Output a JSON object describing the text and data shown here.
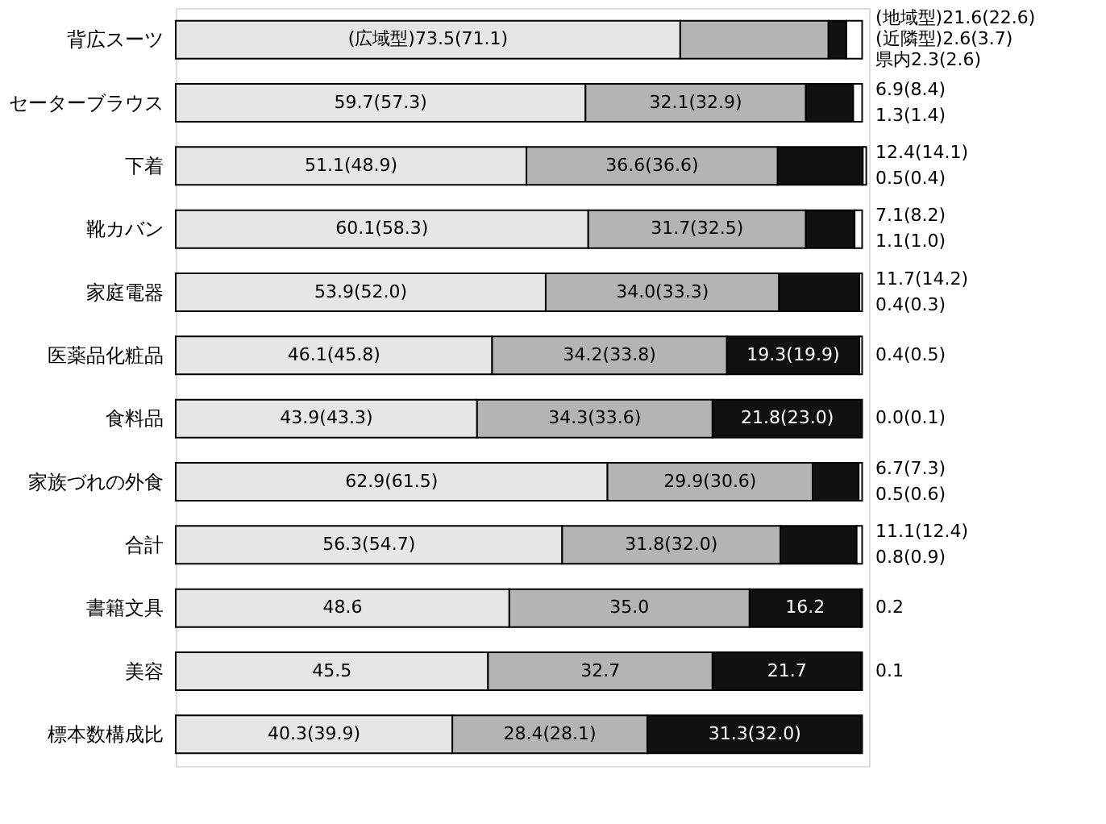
{
  "chart_data": {
    "type": "bar",
    "orientation": "horizontal",
    "stacked": true,
    "xlim": [
      0,
      101
    ],
    "tick_labels": "y",
    "grid": false,
    "categories": [
      "背広スーツ",
      "セーターブラウス",
      "下着",
      "靴カバン",
      "家庭電器",
      "医薬品化粧品",
      "食料品",
      "家族づれの外食",
      "合計",
      "書籍文具",
      "美容",
      "標本数構成比"
    ],
    "series": [
      {
        "color": "#e6e6e6",
        "values": [
          73.5,
          59.7,
          51.1,
          60.1,
          53.9,
          46.1,
          43.9,
          62.9,
          56.3,
          48.6,
          45.5,
          40.3
        ],
        "value_labels": [
          "(広域型)73.5(71.1)",
          "59.7(57.3)",
          "51.1(48.9)",
          "60.1(58.3)",
          "53.9(52.0)",
          "46.1(45.8)",
          "43.9(43.3)",
          "62.9(61.5)",
          "56.3(54.7)",
          "48.6",
          "45.5",
          "40.3(39.9)"
        ]
      },
      {
        "color": "#b4b4b4",
        "values": [
          21.6,
          32.1,
          36.6,
          31.7,
          34.0,
          34.2,
          34.3,
          29.9,
          31.8,
          35.0,
          32.7,
          28.4
        ],
        "value_labels": [
          "(地域型)21.6(22.6)",
          "32.1(32.9)",
          "36.6(36.6)",
          "31.7(32.5)",
          "34.0(33.3)",
          "34.2(33.8)",
          "34.3(33.6)",
          "29.9(30.6)",
          "31.8(32.0)",
          "35.0",
          "32.7",
          "28.4(28.1)"
        ]
      },
      {
        "color": "#111111",
        "values": [
          2.6,
          6.9,
          12.4,
          7.1,
          11.7,
          19.3,
          21.8,
          6.7,
          11.1,
          16.2,
          21.7,
          31.3
        ],
        "value_labels": [
          "(近隣型)2.6(3.7)",
          "6.9(8.4)",
          "12.4(14.1)",
          "7.1(8.2)",
          "11.7(14.2)",
          "19.3(19.9)",
          "21.8(23.0)",
          "6.7(7.3)",
          "11.1(12.4)",
          "16.2",
          "21.7",
          "31.3(32.0)"
        ]
      },
      {
        "color": "#ffffff",
        "values": [
          2.3,
          1.3,
          0.5,
          1.1,
          0.4,
          0.4,
          0.0,
          0.5,
          0.8,
          0.2,
          0.1,
          null
        ],
        "value_labels": [
          "県内2.3(2.6)",
          "1.3(1.4)",
          "0.5(0.4)",
          "1.1(1.0)",
          "0.4(0.3)",
          "0.4(0.5)",
          "0.0(0.1)",
          "0.5(0.6)",
          "0.8(0.9)",
          "0.2",
          "0.1",
          null
        ]
      }
    ]
  }
}
